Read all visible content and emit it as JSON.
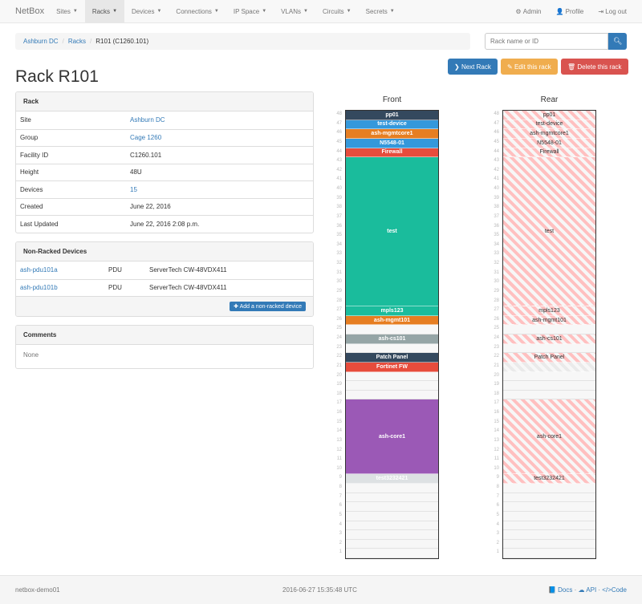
{
  "navbar": {
    "brand": "NetBox",
    "items": [
      {
        "label": "Sites"
      },
      {
        "label": "Racks",
        "active": true
      },
      {
        "label": "Devices"
      },
      {
        "label": "Connections"
      },
      {
        "label": "IP Space"
      },
      {
        "label": "VLANs"
      },
      {
        "label": "Circuits"
      },
      {
        "label": "Secrets"
      }
    ],
    "admin": "Admin",
    "profile": "Profile",
    "logout": "Log out"
  },
  "breadcrumb": [
    "Ashburn DC",
    "Racks",
    "R101 (C1260.101)"
  ],
  "search": {
    "placeholder": "Rack name or ID"
  },
  "buttons": {
    "next": "Next Rack",
    "edit": "Edit this rack",
    "delete": "Delete this rack"
  },
  "title": "Rack R101",
  "rack_panel": {
    "heading": "Rack",
    "rows": [
      {
        "k": "Site",
        "v": "Ashburn DC",
        "link": true
      },
      {
        "k": "Group",
        "v": "Cage 1260",
        "link": true
      },
      {
        "k": "Facility ID",
        "v": "C1260.101"
      },
      {
        "k": "Height",
        "v": "48U"
      },
      {
        "k": "Devices",
        "v": "15",
        "link": true
      },
      {
        "k": "Created",
        "v": "June 22, 2016"
      },
      {
        "k": "Last Updated",
        "v": "June 22, 2016 2:08 p.m."
      }
    ]
  },
  "nonracked": {
    "heading": "Non-Racked Devices",
    "rows": [
      {
        "name": "ash-pdu101a",
        "role": "PDU",
        "type": "ServerTech CW-48VDX411"
      },
      {
        "name": "ash-pdu101b",
        "role": "PDU",
        "type": "ServerTech CW-48VDX411"
      }
    ],
    "add": "Add a non-racked device"
  },
  "comments": {
    "heading": "Comments",
    "body": "None"
  },
  "rack": {
    "front_label": "Front",
    "rear_label": "Rear",
    "units": 48,
    "devices": [
      {
        "name": "pp01",
        "u": 48,
        "h": 1,
        "color": "#34495e"
      },
      {
        "name": "test-device",
        "u": 47,
        "h": 1,
        "color": "#3498db"
      },
      {
        "name": "ash-mgmtcore1",
        "u": 46,
        "h": 1,
        "color": "#e67e22"
      },
      {
        "name": "N5548-01",
        "u": 45,
        "h": 1,
        "color": "#3498db"
      },
      {
        "name": "Firewall",
        "u": 44,
        "h": 1,
        "color": "#e74c3c"
      },
      {
        "name": "test",
        "u": 28,
        "h": 16,
        "color": "#1abc9c"
      },
      {
        "name": "mpls123",
        "u": 27,
        "h": 1,
        "color": "#1abc9c"
      },
      {
        "name": "ash-mgmt101",
        "u": 26,
        "h": 1,
        "color": "#e67e22"
      },
      {
        "name": "ash-cs101",
        "u": 24,
        "h": 1,
        "color": "#95a5a6"
      },
      {
        "name": "Patch Panel",
        "u": 22,
        "h": 1,
        "color": "#34495e"
      },
      {
        "name": "Fortinet FW",
        "u": 21,
        "h": 1,
        "color": "#e74c3c",
        "half_depth": true
      },
      {
        "name": "ash-core1",
        "u": 10,
        "h": 8,
        "color": "#9b59b6"
      },
      {
        "name": "test3232421",
        "u": 9,
        "h": 1,
        "color": "#dde1e3"
      }
    ]
  },
  "footer": {
    "host": "netbox-demo01",
    "time": "2016-06-27 15:35:48 UTC",
    "docs": "Docs",
    "api": "API",
    "code": "Code"
  }
}
